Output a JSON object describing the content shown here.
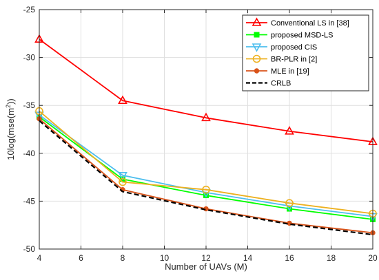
{
  "chart_data": {
    "type": "line",
    "xlabel": "Number of UAVs (M)",
    "ylabel_prefix": "10log(mse(m",
    "ylabel_sup": "2",
    "ylabel_suffix": "))",
    "xlim": [
      4,
      20
    ],
    "ylim": [
      -50,
      -25
    ],
    "xticks": [
      4,
      6,
      8,
      10,
      12,
      14,
      16,
      18,
      20
    ],
    "yticks": [
      -50,
      -45,
      -40,
      -35,
      -30,
      -25
    ],
    "grid": true,
    "legend_position": "top-right",
    "x": [
      4,
      8,
      12,
      16,
      20
    ],
    "series": [
      {
        "name": "Conventional LS in [38]",
        "color": "#ff0000",
        "marker": "triangle-up",
        "dash": false,
        "values": [
          -28.1,
          -34.5,
          -36.3,
          -37.7,
          -38.8
        ]
      },
      {
        "name": "proposed MSD-LS",
        "color": "#00ff00",
        "marker": "square",
        "dash": false,
        "values": [
          -36.2,
          -42.7,
          -44.4,
          -45.8,
          -46.9
        ]
      },
      {
        "name": "proposed CIS",
        "color": "#4dbeee",
        "marker": "triangle-down",
        "dash": false,
        "values": [
          -36.0,
          -42.3,
          -44.1,
          -45.5,
          -46.6
        ]
      },
      {
        "name": "BR-PLR in [2]",
        "color": "#edb120",
        "marker": "circle",
        "dash": false,
        "values": [
          -35.6,
          -43.0,
          -43.8,
          -45.2,
          -46.3
        ]
      },
      {
        "name": "MLE in [19]",
        "color": "#d95319",
        "marker": "dot",
        "dash": false,
        "values": [
          -36.4,
          -43.8,
          -45.8,
          -47.3,
          -48.3
        ]
      },
      {
        "name": "CRLB",
        "color": "#000000",
        "marker": "none",
        "dash": true,
        "values": [
          -36.6,
          -44.0,
          -45.9,
          -47.4,
          -48.5
        ]
      }
    ]
  }
}
